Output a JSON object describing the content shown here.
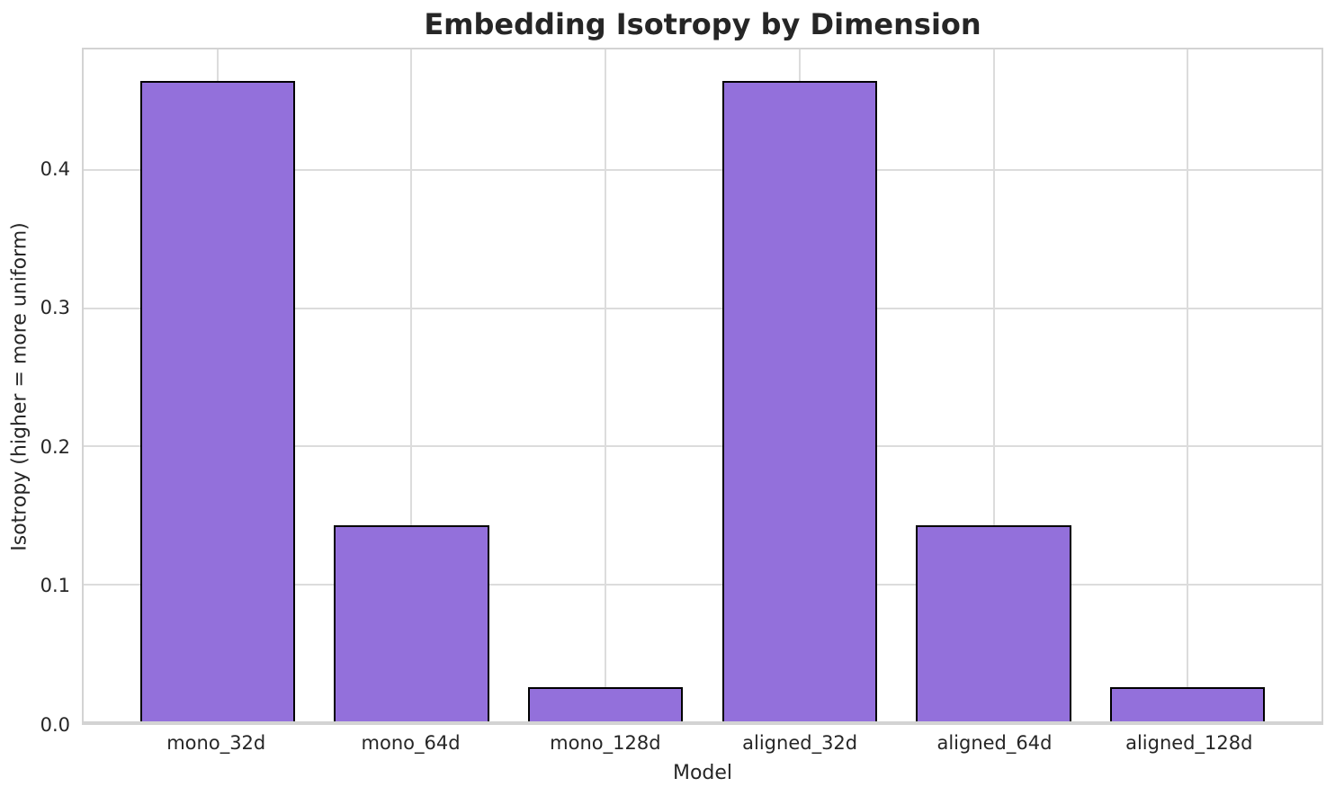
{
  "chart_data": {
    "type": "bar",
    "title": "Embedding Isotropy by Dimension",
    "xlabel": "Model",
    "ylabel": "Isotropy (higher = more uniform)",
    "categories": [
      "mono_32d",
      "mono_64d",
      "mono_128d",
      "aligned_32d",
      "aligned_64d",
      "aligned_128d"
    ],
    "values": [
      0.464,
      0.143,
      0.026,
      0.464,
      0.143,
      0.026
    ],
    "ylim": [
      0,
      0.487
    ],
    "yticks": [
      0.0,
      0.1,
      0.2,
      0.3,
      0.4
    ],
    "ytick_labels": [
      "0.0",
      "0.1",
      "0.2",
      "0.3",
      "0.4"
    ],
    "x_range": [
      -0.69,
      5.69
    ],
    "bar_width_frac": 0.8,
    "grid": true,
    "legend_position": "none",
    "colors": {
      "bar_fill": "#9370DB",
      "bar_edge": "#000000",
      "grid": "#dcdcdc",
      "spine": "#d3d3d3",
      "text": "#262626",
      "background": "#ffffff"
    }
  }
}
